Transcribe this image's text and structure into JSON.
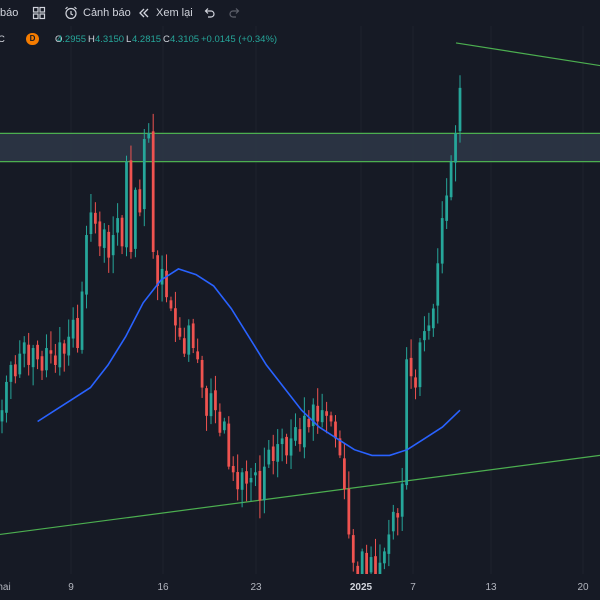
{
  "toolbar": {
    "indicator_label": "báo",
    "alert_label": "Cảnh báo",
    "replay_label": "Xem lại"
  },
  "legend": {
    "close_partial": "C",
    "interval_badge": "D",
    "open_label": "O",
    "open_value": "4.2955",
    "high_label": "H",
    "high_value": "4.3150",
    "low_label": "L",
    "low_value": "4.2815",
    "close_label": "C",
    "close_value": "4.3105",
    "change_value": "+0.0145 (+0.34%)"
  },
  "colors": {
    "background": "#161a25",
    "up": "#26a69a",
    "down": "#ef5350",
    "moving_average": "#2962ff",
    "trendline": "#4caf50",
    "zone_border": "#4caf50",
    "zone_fill": "#2e3848"
  },
  "xaxis": {
    "labels": [
      "hai",
      "9",
      "16",
      "23",
      "2025",
      "7",
      "13",
      "20"
    ]
  },
  "chart_data": {
    "type": "candlestick",
    "interval": "D",
    "last_bar": {
      "open": 4.2955,
      "high": 4.315,
      "low": 4.2815,
      "close": 4.3105,
      "change": 0.0145,
      "change_pct": 0.34
    },
    "x_ticks": [
      "hai",
      "9",
      "16",
      "23",
      "2025",
      "7",
      "13",
      "20"
    ],
    "close_series": [
      3.74,
      3.79,
      3.82,
      3.8,
      3.84,
      3.86,
      3.82,
      3.85,
      3.83,
      3.81,
      3.85,
      3.84,
      3.82,
      3.86,
      3.84,
      3.87,
      3.9,
      3.85,
      3.95,
      4.05,
      4.09,
      4.07,
      4.03,
      4.06,
      4.01,
      4.05,
      4.08,
      4.03,
      4.18,
      4.02,
      4.13,
      4.09,
      4.22,
      4.23,
      4.02,
      3.96,
      3.99,
      3.94,
      3.92,
      3.89,
      3.87,
      3.84,
      3.89,
      3.85,
      3.83,
      3.78,
      3.73,
      3.77,
      3.74,
      3.7,
      3.72,
      3.64,
      3.63,
      3.6,
      3.63,
      3.61,
      3.62,
      3.63,
      3.58,
      3.64,
      3.67,
      3.65,
      3.68,
      3.69,
      3.66,
      3.69,
      3.71,
      3.68,
      3.73,
      3.71,
      3.75,
      3.72,
      3.74,
      3.73,
      3.72,
      3.69,
      3.66,
      3.6,
      3.52,
      3.47,
      3.42,
      3.49,
      3.45,
      3.48,
      3.43,
      3.47,
      3.49,
      3.52,
      3.56,
      3.55,
      3.61,
      3.83,
      3.8,
      3.78,
      3.86,
      3.88,
      3.89,
      3.92,
      4.0,
      4.08,
      4.12,
      4.18,
      4.23,
      4.3105
    ],
    "moving_average": [
      3.72,
      3.74,
      3.76,
      3.78,
      3.82,
      3.87,
      3.93,
      3.97,
      3.99,
      3.98,
      3.96,
      3.92,
      3.87,
      3.82,
      3.78,
      3.74,
      3.71,
      3.69,
      3.67,
      3.66,
      3.66,
      3.67,
      3.69,
      3.71,
      3.74
    ],
    "resistance_zone": [
      4.18,
      4.23
    ],
    "trendlines": [
      {
        "name": "",
        "from": {
          "x": 0,
          "y": 3.52
        },
        "to": {
          "x": 1,
          "y": 3.66
        }
      },
      {
        "name": "",
        "from": {
          "x": 0.76,
          "y": 4.39
        },
        "to": {
          "x": 1,
          "y": 4.35
        }
      }
    ],
    "ylim": [
      3.45,
      4.42
    ]
  }
}
